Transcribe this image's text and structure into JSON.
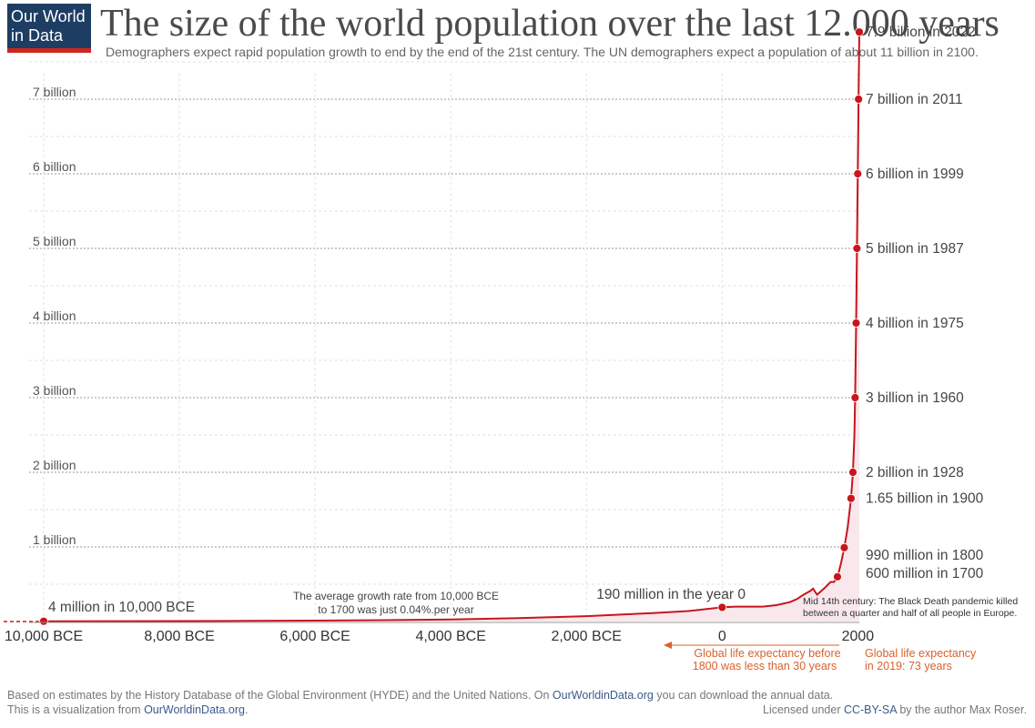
{
  "logo": {
    "line1": "Our World",
    "line2": "in Data",
    "bg": "#1d3d63",
    "accent": "#ce261e"
  },
  "title": "The size of the world population over the last 12.000 years",
  "subtitle": "Demographers expect rapid population growth to end by the end of the 21st century. The UN demographers expect a population of about 11 billion in 2100.",
  "footer": {
    "line1_a": "Based on estimates by the History Database of the Global Environment (HYDE) and the United Nations. On ",
    "line1_link": "OurWorldinData.org",
    "line1_b": " you can download the annual data.",
    "line2_a": "This is a visualization from ",
    "line2_link": "OurWorldinData.org",
    "line2_b": ".",
    "license_a": "Licensed under ",
    "license_link": "CC-BY-SA",
    "license_b": " by the author Max Roser."
  },
  "chart_data": {
    "type": "line",
    "line_color": "#c8151e",
    "area_color": "#f8e8ec",
    "xlim": [
      -10000,
      2022
    ],
    "ylim": [
      0,
      7.9
    ],
    "grid": true,
    "y_ticks": [
      {
        "value": 1,
        "label": "1 billion"
      },
      {
        "value": 2,
        "label": "2 billion"
      },
      {
        "value": 3,
        "label": "3 billion"
      },
      {
        "value": 4,
        "label": "4 billion"
      },
      {
        "value": 5,
        "label": "5 billion"
      },
      {
        "value": 6,
        "label": "6 billion"
      },
      {
        "value": 7,
        "label": "7 billion"
      }
    ],
    "x_ticks": [
      {
        "value": -10000,
        "label": "10,000 BCE"
      },
      {
        "value": -8000,
        "label": "8,000 BCE"
      },
      {
        "value": -6000,
        "label": "6,000 BCE"
      },
      {
        "value": -4000,
        "label": "4,000 BCE"
      },
      {
        "value": -2000,
        "label": "2,000 BCE"
      },
      {
        "value": 0,
        "label": "0"
      },
      {
        "value": 2000,
        "label": "2000"
      }
    ],
    "series": [
      {
        "x": [
          -10000,
          -9000,
          -8000,
          -7000,
          -6000,
          -5000,
          -4000,
          -3000,
          -2000,
          -1000,
          -500,
          0,
          200,
          400,
          600,
          800,
          1000,
          1100,
          1200,
          1300,
          1340,
          1400,
          1500,
          1600,
          1650,
          1700,
          1750,
          1800,
          1850,
          1900,
          1928,
          1950,
          1960,
          1975,
          1987,
          1999,
          2011,
          2022
        ],
        "y": [
          0.004,
          0.005,
          0.006,
          0.008,
          0.012,
          0.018,
          0.028,
          0.045,
          0.072,
          0.115,
          0.14,
          0.19,
          0.2,
          0.2,
          0.2,
          0.22,
          0.26,
          0.3,
          0.36,
          0.41,
          0.44,
          0.36,
          0.44,
          0.53,
          0.53,
          0.6,
          0.77,
          0.99,
          1.26,
          1.65,
          2.0,
          2.5,
          3.0,
          4.0,
          5.0,
          6.0,
          7.0,
          7.9
        ]
      }
    ],
    "points": [
      {
        "x": -10000,
        "y": 0.004,
        "label": "4 million in 10,000 BCE"
      },
      {
        "x": 0,
        "y": 0.19,
        "label": "190 million in the year 0"
      },
      {
        "x": 1700,
        "y": 0.6,
        "label": "600 million in 1700"
      },
      {
        "x": 1800,
        "y": 0.99,
        "label": "990 million in 1800"
      },
      {
        "x": 1900,
        "y": 1.65,
        "label": "1.65 billion in 1900"
      },
      {
        "x": 1928,
        "y": 2.0,
        "label": "2 billion in 1928"
      },
      {
        "x": 1960,
        "y": 3.0,
        "label": "3 billion in 1960"
      },
      {
        "x": 1975,
        "y": 4.0,
        "label": "4 billion in 1975"
      },
      {
        "x": 1987,
        "y": 5.0,
        "label": "5 billion in 1987"
      },
      {
        "x": 1999,
        "y": 6.0,
        "label": "6 billion in 1999"
      },
      {
        "x": 2011,
        "y": 7.0,
        "label": "7 billion in 2011"
      },
      {
        "x": 2022,
        "y": 7.9,
        "label": "7.9 billion in 2022"
      }
    ],
    "annotations": {
      "growth_line1": "The average growth rate from 10,000 BCE",
      "growth_line2": "to 1700 was just  0.04%.per year",
      "black_death_line1": "Mid 14th century: The Black Death pandemic killed",
      "black_death_line2": "between a quarter and half of all people in Europe.",
      "life_exp_before_line1": "Global life expectancy before",
      "life_exp_before_line2": "1800 was less than 30 years",
      "life_exp_2019_line1": "Global life expectancy",
      "life_exp_2019_line2": "in 2019: 73 years",
      "annotation_color": "#d9622b"
    }
  }
}
